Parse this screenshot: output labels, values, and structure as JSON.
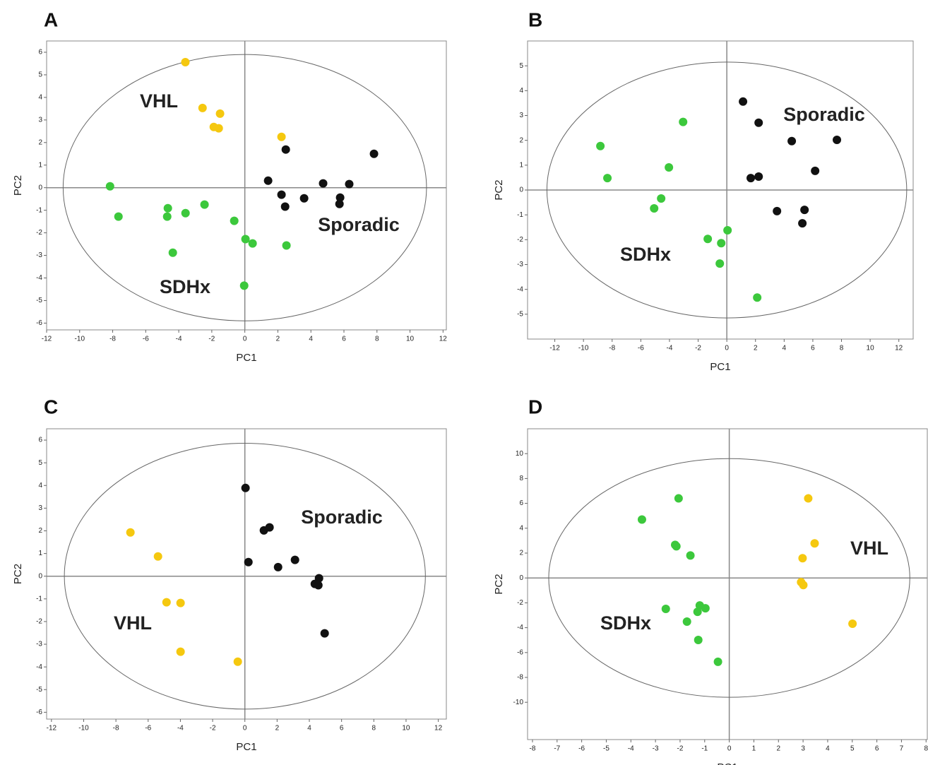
{
  "chart_data": [
    {
      "type": "scatter",
      "panel": "A",
      "x_label": "PC1",
      "y_label": "PC2",
      "xlim": [
        -12,
        12.2
      ],
      "ylim": [
        -6.3,
        6.5
      ],
      "xticks": [
        -12,
        -10,
        -8,
        -6,
        -4,
        -2,
        0,
        2,
        4,
        6,
        8,
        10,
        12
      ],
      "yticks": [
        -6,
        -5,
        -4,
        -3,
        -2,
        -1,
        0,
        1,
        2,
        3,
        4,
        5,
        6
      ],
      "ellipse": [
        11,
        5.9
      ],
      "series": [
        {
          "name": "VHL",
          "color": "#f5c80f",
          "label_color": "#c4c01e",
          "x": [
            -3.6,
            -2.56,
            -1.5,
            -1.88,
            -1.58,
            2.22
          ],
          "y": [
            5.56,
            3.53,
            3.28,
            2.69,
            2.63,
            2.25
          ]
        },
        {
          "name": "Sporadic",
          "color": "#111111",
          "label_color": "#111111",
          "x": [
            2.48,
            7.82,
            1.41,
            4.74,
            6.32,
            2.22,
            3.59,
            5.77,
            5.73,
            2.44
          ],
          "y": [
            1.69,
            1.5,
            0.31,
            0.19,
            0.16,
            -0.31,
            -0.47,
            -0.44,
            -0.72,
            -0.84
          ]
        },
        {
          "name": "SDHx",
          "color": "#3cc83c",
          "label_color": "#3a8a1e",
          "x": [
            -8.16,
            -7.65,
            -4.66,
            -4.7,
            -3.59,
            -2.44,
            -0.64,
            0.04,
            0.47,
            2.52,
            -4.36,
            -0.04
          ],
          "y": [
            0.06,
            -1.28,
            -0.91,
            -1.28,
            -1.13,
            -0.75,
            -1.47,
            -2.28,
            -2.47,
            -2.56,
            -2.88,
            -4.34
          ]
        }
      ]
    },
    {
      "type": "scatter",
      "panel": "B",
      "x_label": "PC1",
      "y_label": "PC2",
      "xlim": [
        -13.9,
        13
      ],
      "ylim": [
        -6,
        6
      ],
      "xticks": [
        -12,
        -10,
        -8,
        -6,
        -4,
        -2,
        0,
        2,
        4,
        6,
        8,
        10,
        12
      ],
      "yticks": [
        -5,
        -4,
        -3,
        -2,
        -1,
        0,
        1,
        2,
        3,
        4,
        5
      ],
      "ellipse": [
        12.55,
        5.15
      ],
      "series": [
        {
          "name": "Sporadic",
          "color": "#111111",
          "label_color": "#111111",
          "x": [
            1.13,
            2.22,
            4.53,
            7.68,
            6.16,
            1.67,
            2.22,
            3.5,
            5.42,
            5.27
          ],
          "y": [
            3.56,
            2.71,
            1.97,
            2.02,
            0.77,
            0.48,
            0.54,
            -0.85,
            -0.8,
            -1.34
          ]
        },
        {
          "name": "SDHx",
          "color": "#3cc83c",
          "label_color": "#3a8a1e",
          "x": [
            -8.82,
            -8.33,
            -3.05,
            -4.04,
            -4.58,
            -5.07,
            0.05,
            -1.33,
            -0.39,
            -0.49,
            2.12
          ],
          "y": [
            1.77,
            0.48,
            2.74,
            0.91,
            -0.34,
            -0.74,
            -1.62,
            -1.97,
            -2.14,
            -2.96,
            -4.33
          ]
        }
      ]
    },
    {
      "type": "scatter",
      "panel": "C",
      "x_label": "PC1",
      "y_label": "PC2",
      "xlim": [
        -12.3,
        12.5
      ],
      "ylim": [
        -6.3,
        6.5
      ],
      "xticks": [
        -12,
        -10,
        -8,
        -6,
        -4,
        -2,
        0,
        2,
        4,
        6,
        8,
        10,
        12
      ],
      "yticks": [
        -6,
        -5,
        -4,
        -3,
        -2,
        -1,
        0,
        1,
        2,
        3,
        4,
        5,
        6
      ],
      "ellipse": [
        11.2,
        5.86
      ],
      "series": [
        {
          "name": "Sporadic",
          "color": "#111111",
          "label_color": "#111111",
          "x": [
            0.04,
            1.18,
            1.53,
            0.22,
            2.06,
            3.11,
            4.6,
            4.34,
            4.56,
            4.95
          ],
          "y": [
            3.89,
            2.02,
            2.15,
            0.62,
            0.4,
            0.72,
            -0.09,
            -0.34,
            -0.4,
            -2.52
          ]
        },
        {
          "name": "VHL",
          "color": "#f5c80f",
          "label_color": "#c4c01e",
          "x": [
            -7.1,
            -5.39,
            -4.86,
            -3.99,
            -3.99,
            -0.44
          ],
          "y": [
            1.93,
            0.87,
            -1.15,
            -1.18,
            -3.33,
            -3.77
          ]
        }
      ]
    },
    {
      "type": "scatter",
      "panel": "D",
      "x_label": "PC1",
      "y_label": "PC2",
      "xlim": [
        -8.2,
        8.05
      ],
      "ylim": [
        -13,
        12
      ],
      "xticks": [
        -8,
        -7,
        -6,
        -5,
        -4,
        -3,
        -2,
        -1,
        0,
        1,
        2,
        3,
        4,
        5,
        6,
        7,
        8
      ],
      "yticks": [
        -10,
        -8,
        -6,
        -4,
        -2,
        0,
        2,
        4,
        6,
        8,
        10
      ],
      "ellipse": [
        7.34,
        9.6
      ],
      "series": [
        {
          "name": "SDHx",
          "color": "#3cc83c",
          "label_color": "#3a8a1e",
          "x": [
            -3.55,
            -2.06,
            -2.2,
            -2.15,
            -1.58,
            -2.58,
            -1.72,
            -1.2,
            -0.97,
            -1.29,
            -1.26,
            -0.46
          ],
          "y": [
            4.7,
            6.4,
            2.66,
            2.55,
            1.81,
            -2.49,
            -3.51,
            -2.21,
            -2.44,
            -2.72,
            -4.99,
            -6.74
          ]
        },
        {
          "name": "VHL",
          "color": "#f5c80f",
          "label_color": "#c4c01e",
          "x": [
            3.21,
            3.47,
            2.98,
            2.92,
            3.01,
            5.01
          ],
          "y": [
            6.4,
            2.78,
            1.59,
            -0.34,
            -0.57,
            -3.68
          ]
        }
      ]
    }
  ]
}
